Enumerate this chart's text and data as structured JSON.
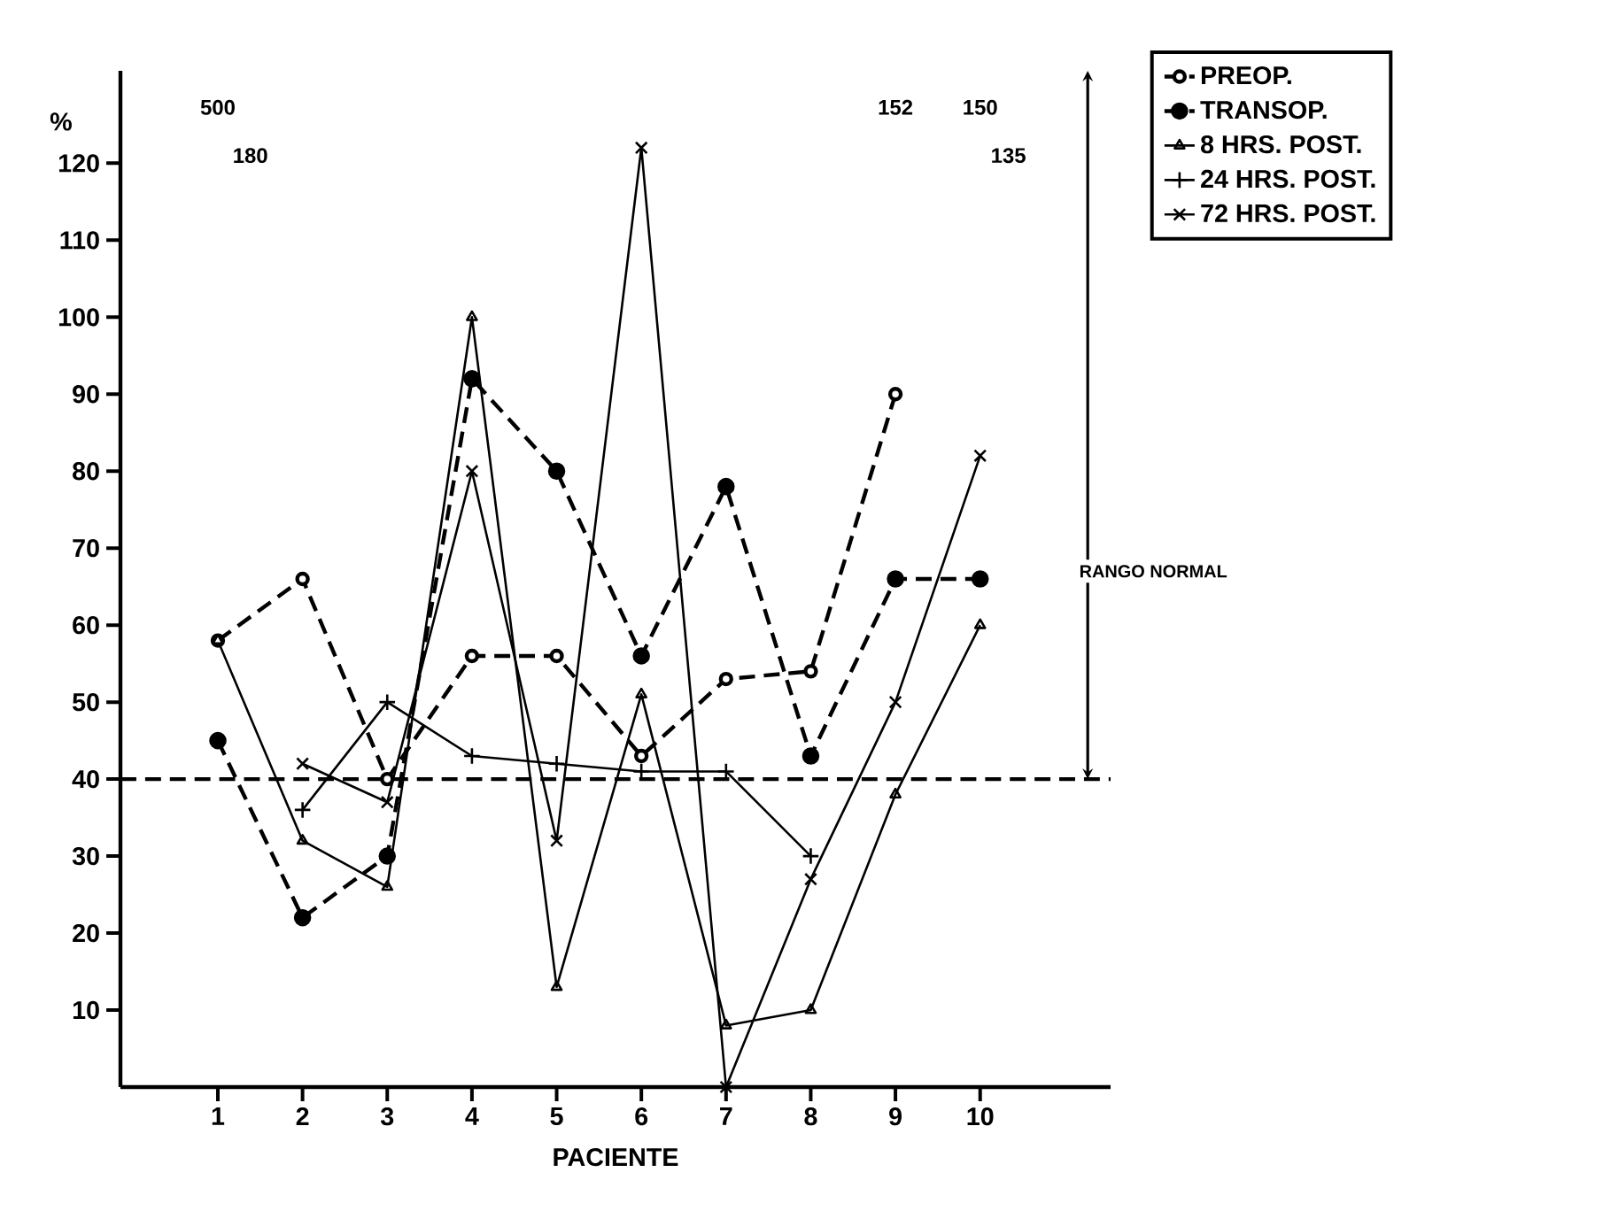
{
  "chart_data": {
    "type": "line",
    "xlabel": "PACIENTE",
    "ylabel": "%",
    "categories": [
      "1",
      "2",
      "3",
      "4",
      "5",
      "6",
      "7",
      "8",
      "9",
      "10"
    ],
    "ylim": [
      0,
      132
    ],
    "yticks": [
      10,
      20,
      30,
      40,
      50,
      60,
      70,
      80,
      90,
      100,
      110,
      120
    ],
    "legend": "top right",
    "series": [
      {
        "name": "PREOP.",
        "color": "#000000",
        "marker": "circle",
        "line_style": "dashed",
        "values": [
          58,
          66,
          40,
          56,
          56,
          43,
          53,
          54,
          90,
          null
        ]
      },
      {
        "name": "TRANSOP.",
        "color": "#000000",
        "marker": "dot",
        "line_style": "dashed",
        "values": [
          45,
          22,
          30,
          92,
          80,
          56,
          78,
          43,
          66,
          66
        ]
      },
      {
        "name": "8 HRS.  POST.",
        "color": "#000000",
        "marker": "triangle",
        "line_style": "solid",
        "values": [
          58,
          32,
          26,
          100,
          13,
          51,
          8,
          10,
          38,
          60
        ]
      },
      {
        "name": "24 HRS.  POST.",
        "color": "#000000",
        "marker": "plus",
        "line_style": "solid",
        "values": [
          null,
          36,
          50,
          43,
          42,
          41,
          41,
          30,
          null,
          null
        ]
      },
      {
        "name": "72 HRS.  POST.",
        "color": "#000000",
        "marker": "cross",
        "line_style": "solid",
        "values": [
          null,
          42,
          37,
          80,
          32,
          122,
          0,
          27,
          50,
          82
        ]
      }
    ],
    "ref_lines": [
      {
        "axis": "y",
        "value": 40,
        "line_style": "dashed",
        "color": "#000000"
      }
    ],
    "annotations": [
      "500",
      "180",
      "152",
      "150",
      "135",
      "RANGO NORMAL"
    ]
  }
}
